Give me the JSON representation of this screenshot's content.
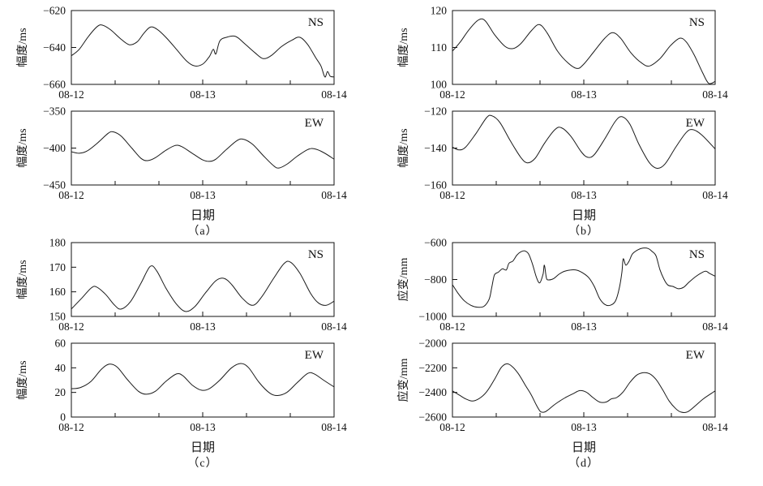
{
  "figure": {
    "xlabel": "日期",
    "x_tick_labels": [
      "08-12",
      "08-13",
      "08-14"
    ],
    "line_color": "#1a1a1a",
    "panels": [
      {
        "letter": "（a）"
      },
      {
        "letter": "（b）"
      },
      {
        "letter": "（c）"
      },
      {
        "letter": "（d）"
      }
    ]
  },
  "chart_data": [
    {
      "type": "line",
      "panel": "a",
      "direction": "NS",
      "ylabel": "幅度/ms",
      "xlabel": "日期",
      "xlim": [
        0,
        2
      ],
      "x_unit": "days from 08-12",
      "x_tick_labels": [
        "08-12",
        "08-13",
        "08-14"
      ],
      "ylim": [
        -660,
        -620
      ],
      "yticks": [
        -620,
        -640,
        -660
      ],
      "ytick_labels": [
        "−620",
        "−640",
        "−660"
      ],
      "points": [
        [
          0,
          -644.5
        ],
        [
          0.06,
          -641
        ],
        [
          0.13,
          -634
        ],
        [
          0.2,
          -628.5
        ],
        [
          0.24,
          -628
        ],
        [
          0.3,
          -630.5
        ],
        [
          0.37,
          -635
        ],
        [
          0.44,
          -638.5
        ],
        [
          0.5,
          -637
        ],
        [
          0.55,
          -632.5
        ],
        [
          0.6,
          -629
        ],
        [
          0.65,
          -630
        ],
        [
          0.72,
          -634.5
        ],
        [
          0.8,
          -641
        ],
        [
          0.88,
          -647.5
        ],
        [
          0.94,
          -650
        ],
        [
          1.0,
          -649
        ],
        [
          1.05,
          -645
        ],
        [
          1.08,
          -641
        ],
        [
          1.1,
          -643.5
        ],
        [
          1.13,
          -636.5
        ],
        [
          1.18,
          -634.5
        ],
        [
          1.25,
          -634
        ],
        [
          1.32,
          -638
        ],
        [
          1.4,
          -643
        ],
        [
          1.46,
          -646
        ],
        [
          1.52,
          -644.5
        ],
        [
          1.6,
          -639.5
        ],
        [
          1.68,
          -636
        ],
        [
          1.74,
          -634.5
        ],
        [
          1.8,
          -638.5
        ],
        [
          1.86,
          -645.5
        ],
        [
          1.9,
          -650
        ],
        [
          1.93,
          -656
        ],
        [
          1.95,
          -653
        ],
        [
          1.97,
          -655.5
        ],
        [
          2,
          -656
        ]
      ]
    },
    {
      "type": "line",
      "panel": "a",
      "direction": "EW",
      "ylabel": "幅度/ms",
      "xlabel": "日期",
      "xlim": [
        0,
        2
      ],
      "x_unit": "days from 08-12",
      "x_tick_labels": [
        "08-12",
        "08-13",
        "08-14"
      ],
      "ylim": [
        -450,
        -350
      ],
      "yticks": [
        -350,
        -400,
        -450
      ],
      "ytick_labels": [
        "−350",
        "−400",
        "−450"
      ],
      "points": [
        [
          0,
          -405
        ],
        [
          0.06,
          -407
        ],
        [
          0.12,
          -404
        ],
        [
          0.2,
          -393
        ],
        [
          0.28,
          -380
        ],
        [
          0.32,
          -378
        ],
        [
          0.38,
          -384
        ],
        [
          0.46,
          -400
        ],
        [
          0.53,
          -414
        ],
        [
          0.58,
          -417
        ],
        [
          0.64,
          -413
        ],
        [
          0.72,
          -403
        ],
        [
          0.79,
          -396.5
        ],
        [
          0.84,
          -398
        ],
        [
          0.92,
          -407
        ],
        [
          1.0,
          -416
        ],
        [
          1.05,
          -418
        ],
        [
          1.1,
          -415
        ],
        [
          1.18,
          -402
        ],
        [
          1.26,
          -390
        ],
        [
          1.31,
          -388
        ],
        [
          1.38,
          -395
        ],
        [
          1.46,
          -410
        ],
        [
          1.54,
          -424
        ],
        [
          1.58,
          -427
        ],
        [
          1.64,
          -422
        ],
        [
          1.72,
          -411
        ],
        [
          1.8,
          -402
        ],
        [
          1.85,
          -401
        ],
        [
          1.92,
          -406
        ],
        [
          2,
          -415
        ]
      ]
    },
    {
      "type": "line",
      "panel": "b",
      "direction": "NS",
      "ylabel": "幅度/ms",
      "xlabel": "日期",
      "xlim": [
        0,
        2
      ],
      "x_unit": "days from 08-12",
      "x_tick_labels": [
        "08-12",
        "08-13",
        "08-14"
      ],
      "ylim": [
        100,
        120
      ],
      "yticks": [
        100,
        110,
        120
      ],
      "ytick_labels": [
        "100",
        "110",
        "120"
      ],
      "points": [
        [
          0,
          109
        ],
        [
          0.06,
          111.5
        ],
        [
          0.13,
          115
        ],
        [
          0.2,
          117.5
        ],
        [
          0.25,
          117.2
        ],
        [
          0.32,
          113.5
        ],
        [
          0.4,
          110.3
        ],
        [
          0.46,
          109.7
        ],
        [
          0.52,
          111
        ],
        [
          0.6,
          114.5
        ],
        [
          0.66,
          116.2
        ],
        [
          0.72,
          114
        ],
        [
          0.8,
          109
        ],
        [
          0.88,
          105.8
        ],
        [
          0.95,
          104.3
        ],
        [
          1.0,
          105.5
        ],
        [
          1.08,
          109
        ],
        [
          1.16,
          112.5
        ],
        [
          1.22,
          114
        ],
        [
          1.28,
          112.5
        ],
        [
          1.36,
          108.5
        ],
        [
          1.44,
          105.8
        ],
        [
          1.5,
          105
        ],
        [
          1.58,
          107
        ],
        [
          1.66,
          110.5
        ],
        [
          1.73,
          112.5
        ],
        [
          1.78,
          111.5
        ],
        [
          1.84,
          108
        ],
        [
          1.9,
          103.5
        ],
        [
          1.95,
          100.3
        ],
        [
          2,
          100.8
        ]
      ]
    },
    {
      "type": "line",
      "panel": "b",
      "direction": "EW",
      "ylabel": "幅度/ms",
      "xlabel": "日期",
      "xlim": [
        0,
        2
      ],
      "x_unit": "days from 08-12",
      "x_tick_labels": [
        "08-12",
        "08-13",
        "08-14"
      ],
      "ylim": [
        -160,
        -120
      ],
      "yticks": [
        -120,
        -140,
        -160
      ],
      "ytick_labels": [
        "−120",
        "−140",
        "−160"
      ],
      "points": [
        [
          0,
          -139.5
        ],
        [
          0.05,
          -141
        ],
        [
          0.1,
          -139.5
        ],
        [
          0.18,
          -132
        ],
        [
          0.26,
          -123.5
        ],
        [
          0.3,
          -122.5
        ],
        [
          0.36,
          -126
        ],
        [
          0.44,
          -136
        ],
        [
          0.52,
          -145
        ],
        [
          0.57,
          -148
        ],
        [
          0.63,
          -145.5
        ],
        [
          0.7,
          -137.5
        ],
        [
          0.78,
          -130
        ],
        [
          0.83,
          -129
        ],
        [
          0.9,
          -133.5
        ],
        [
          0.98,
          -142
        ],
        [
          1.03,
          -145
        ],
        [
          1.08,
          -143.5
        ],
        [
          1.16,
          -135
        ],
        [
          1.24,
          -125.5
        ],
        [
          1.29,
          -123
        ],
        [
          1.35,
          -127
        ],
        [
          1.42,
          -138
        ],
        [
          1.5,
          -148
        ],
        [
          1.56,
          -151
        ],
        [
          1.62,
          -148.5
        ],
        [
          1.7,
          -139.5
        ],
        [
          1.78,
          -131.5
        ],
        [
          1.83,
          -130
        ],
        [
          1.9,
          -133
        ],
        [
          2,
          -140.5
        ]
      ]
    },
    {
      "type": "line",
      "panel": "c",
      "direction": "NS",
      "ylabel": "幅度/ms",
      "xlabel": "日期",
      "xlim": [
        0,
        2
      ],
      "x_unit": "days from 08-12",
      "x_tick_labels": [
        "08-12",
        "08-13",
        "08-14"
      ],
      "ylim": [
        150,
        180
      ],
      "yticks": [
        150,
        160,
        170,
        180
      ],
      "ytick_labels": [
        "150",
        "160",
        "170",
        "180"
      ],
      "points": [
        [
          0,
          153
        ],
        [
          0.08,
          157.5
        ],
        [
          0.15,
          161.5
        ],
        [
          0.19,
          162
        ],
        [
          0.26,
          159
        ],
        [
          0.33,
          154.5
        ],
        [
          0.38,
          153
        ],
        [
          0.45,
          156
        ],
        [
          0.53,
          163.5
        ],
        [
          0.6,
          170.3
        ],
        [
          0.65,
          168.5
        ],
        [
          0.72,
          161.5
        ],
        [
          0.8,
          155
        ],
        [
          0.87,
          152
        ],
        [
          0.94,
          154
        ],
        [
          1.02,
          159.5
        ],
        [
          1.1,
          164.5
        ],
        [
          1.16,
          165.5
        ],
        [
          1.22,
          163
        ],
        [
          1.3,
          157.5
        ],
        [
          1.38,
          154.5
        ],
        [
          1.45,
          158
        ],
        [
          1.54,
          165.5
        ],
        [
          1.62,
          171.5
        ],
        [
          1.67,
          172
        ],
        [
          1.74,
          167.5
        ],
        [
          1.82,
          159.5
        ],
        [
          1.88,
          155.5
        ],
        [
          1.94,
          154.5
        ],
        [
          2,
          156.2
        ]
      ]
    },
    {
      "type": "line",
      "panel": "c",
      "direction": "EW",
      "ylabel": "幅度/ms",
      "xlabel": "日期",
      "xlim": [
        0,
        2
      ],
      "x_unit": "days from 08-12",
      "x_tick_labels": [
        "08-12",
        "08-13",
        "08-14"
      ],
      "ylim": [
        0,
        60
      ],
      "yticks": [
        0,
        20,
        40,
        60
      ],
      "ytick_labels": [
        "0",
        "20",
        "40",
        "60"
      ],
      "points": [
        [
          0,
          23
        ],
        [
          0.07,
          24
        ],
        [
          0.15,
          29
        ],
        [
          0.23,
          39
        ],
        [
          0.29,
          43
        ],
        [
          0.35,
          40.5
        ],
        [
          0.43,
          30
        ],
        [
          0.51,
          21
        ],
        [
          0.57,
          18.5
        ],
        [
          0.64,
          21
        ],
        [
          0.72,
          29
        ],
        [
          0.8,
          35
        ],
        [
          0.85,
          33.5
        ],
        [
          0.92,
          26
        ],
        [
          0.99,
          21.8
        ],
        [
          1.05,
          23
        ],
        [
          1.13,
          30
        ],
        [
          1.22,
          40
        ],
        [
          1.29,
          43.5
        ],
        [
          1.35,
          40
        ],
        [
          1.43,
          28
        ],
        [
          1.51,
          19.5
        ],
        [
          1.57,
          17.5
        ],
        [
          1.64,
          20
        ],
        [
          1.72,
          28
        ],
        [
          1.8,
          35.5
        ],
        [
          1.85,
          35
        ],
        [
          1.92,
          30
        ],
        [
          2,
          24.5
        ]
      ]
    },
    {
      "type": "line",
      "panel": "d",
      "direction": "NS",
      "ylabel": "应变/mm",
      "xlabel": "日期",
      "xlim": [
        0,
        2
      ],
      "x_unit": "days from 08-12",
      "x_tick_labels": [
        "08-12",
        "08-13",
        "08-14"
      ],
      "ylim": [
        -1000,
        -600
      ],
      "yticks": [
        -600,
        -800,
        -1000
      ],
      "ytick_labels": [
        "−600",
        "−800",
        "−1000"
      ],
      "points": [
        [
          0,
          -828
        ],
        [
          0.04,
          -872
        ],
        [
          0.09,
          -915
        ],
        [
          0.14,
          -940
        ],
        [
          0.19,
          -950
        ],
        [
          0.24,
          -945
        ],
        [
          0.28,
          -905
        ],
        [
          0.3,
          -840
        ],
        [
          0.32,
          -775
        ],
        [
          0.35,
          -760
        ],
        [
          0.38,
          -742
        ],
        [
          0.41,
          -748
        ],
        [
          0.43,
          -712
        ],
        [
          0.46,
          -700
        ],
        [
          0.49,
          -668
        ],
        [
          0.52,
          -650
        ],
        [
          0.55,
          -645
        ],
        [
          0.58,
          -662
        ],
        [
          0.61,
          -718
        ],
        [
          0.64,
          -790
        ],
        [
          0.665,
          -818
        ],
        [
          0.69,
          -770
        ],
        [
          0.7,
          -722
        ],
        [
          0.715,
          -790
        ],
        [
          0.73,
          -802
        ],
        [
          0.77,
          -795
        ],
        [
          0.81,
          -772
        ],
        [
          0.85,
          -756
        ],
        [
          0.9,
          -748
        ],
        [
          0.95,
          -750
        ],
        [
          1.0,
          -768
        ],
        [
          1.04,
          -792
        ],
        [
          1.08,
          -838
        ],
        [
          1.12,
          -902
        ],
        [
          1.16,
          -935
        ],
        [
          1.2,
          -940
        ],
        [
          1.24,
          -918
        ],
        [
          1.27,
          -848
        ],
        [
          1.29,
          -760
        ],
        [
          1.3,
          -688
        ],
        [
          1.32,
          -722
        ],
        [
          1.345,
          -700
        ],
        [
          1.37,
          -662
        ],
        [
          1.41,
          -640
        ],
        [
          1.45,
          -630
        ],
        [
          1.49,
          -632
        ],
        [
          1.52,
          -648
        ],
        [
          1.55,
          -672
        ],
        [
          1.58,
          -748
        ],
        [
          1.61,
          -798
        ],
        [
          1.64,
          -830
        ],
        [
          1.68,
          -838
        ],
        [
          1.72,
          -850
        ],
        [
          1.76,
          -842
        ],
        [
          1.8,
          -815
        ],
        [
          1.85,
          -785
        ],
        [
          1.9,
          -762
        ],
        [
          1.93,
          -755
        ],
        [
          1.96,
          -768
        ],
        [
          2,
          -782
        ]
      ]
    },
    {
      "type": "line",
      "panel": "d",
      "direction": "EW",
      "ylabel": "应变/mm",
      "xlabel": "日期",
      "xlim": [
        0,
        2
      ],
      "x_unit": "days from 08-12",
      "x_tick_labels": [
        "08-12",
        "08-13",
        "08-14"
      ],
      "ylim": [
        -2600,
        -2000
      ],
      "yticks": [
        -2000,
        -2200,
        -2400,
        -2600
      ],
      "ytick_labels": [
        "−2000",
        "−2200",
        "−2400",
        "−2600"
      ],
      "points": [
        [
          0,
          -2388
        ],
        [
          0.05,
          -2420
        ],
        [
          0.1,
          -2452
        ],
        [
          0.15,
          -2470
        ],
        [
          0.2,
          -2452
        ],
        [
          0.26,
          -2395
        ],
        [
          0.32,
          -2295
        ],
        [
          0.37,
          -2200
        ],
        [
          0.41,
          -2168
        ],
        [
          0.45,
          -2185
        ],
        [
          0.5,
          -2245
        ],
        [
          0.56,
          -2350
        ],
        [
          0.6,
          -2420
        ],
        [
          0.64,
          -2505
        ],
        [
          0.67,
          -2555
        ],
        [
          0.7,
          -2560
        ],
        [
          0.73,
          -2540
        ],
        [
          0.77,
          -2505
        ],
        [
          0.81,
          -2475
        ],
        [
          0.86,
          -2442
        ],
        [
          0.92,
          -2410
        ],
        [
          0.97,
          -2385
        ],
        [
          1.02,
          -2398
        ],
        [
          1.07,
          -2442
        ],
        [
          1.12,
          -2478
        ],
        [
          1.17,
          -2478
        ],
        [
          1.21,
          -2452
        ],
        [
          1.25,
          -2442
        ],
        [
          1.3,
          -2395
        ],
        [
          1.35,
          -2320
        ],
        [
          1.4,
          -2262
        ],
        [
          1.45,
          -2240
        ],
        [
          1.5,
          -2248
        ],
        [
          1.55,
          -2295
        ],
        [
          1.6,
          -2378
        ],
        [
          1.65,
          -2470
        ],
        [
          1.7,
          -2532
        ],
        [
          1.74,
          -2560
        ],
        [
          1.79,
          -2558
        ],
        [
          1.85,
          -2508
        ],
        [
          1.91,
          -2452
        ],
        [
          2,
          -2388
        ]
      ]
    }
  ]
}
